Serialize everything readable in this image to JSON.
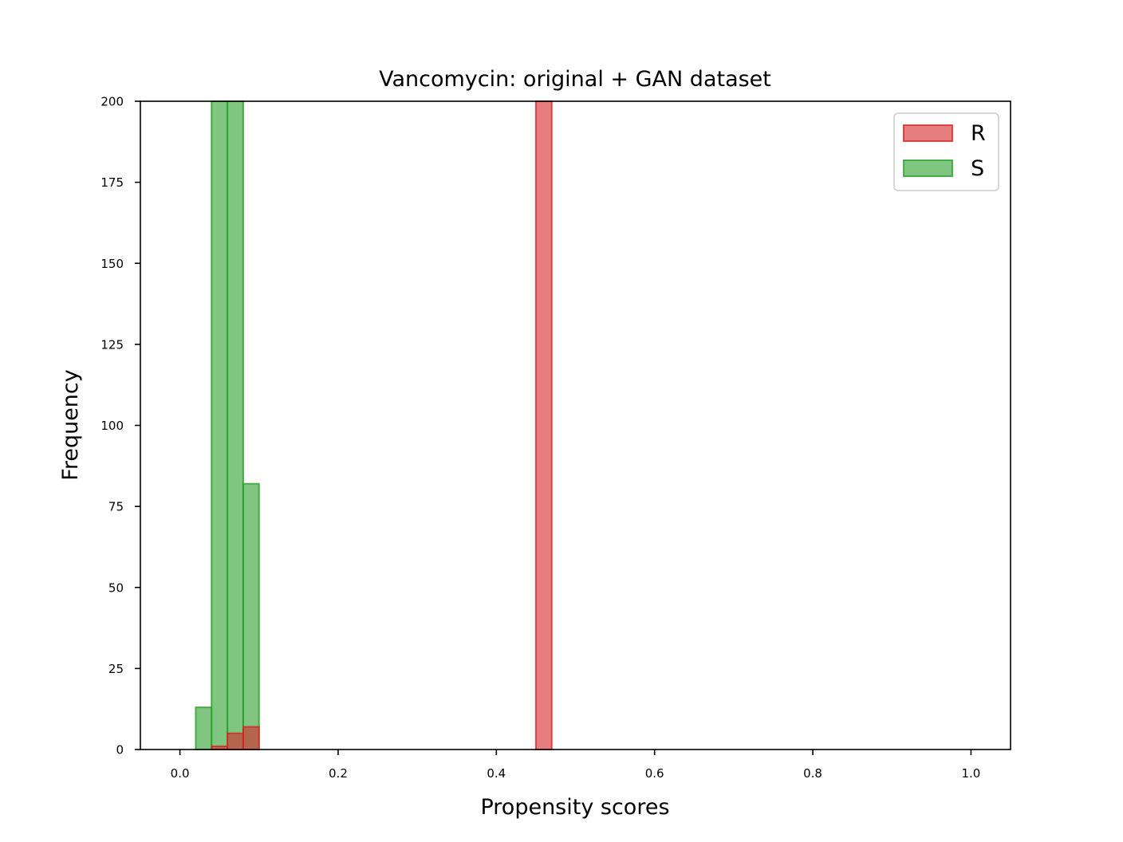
{
  "chart_data": {
    "type": "bar",
    "title": "Vancomycin: original + GAN dataset",
    "xlabel": "Propensity scores",
    "ylabel": "Frequency",
    "xlim": [
      -0.05,
      1.05
    ],
    "ylim": [
      0,
      200
    ],
    "xticks": [
      "0.0",
      "0.2",
      "0.4",
      "0.6",
      "0.8",
      "1.0"
    ],
    "yticks": [
      "0",
      "25",
      "50",
      "75",
      "100",
      "125",
      "150",
      "175",
      "200"
    ],
    "legend_position": "top-right",
    "grid": false,
    "series": [
      {
        "name": "S",
        "color": "#2ca02c",
        "bins": [
          {
            "x0": 0.02,
            "x1": 0.04,
            "value": 13
          },
          {
            "x0": 0.04,
            "x1": 0.06,
            "value": 200
          },
          {
            "x0": 0.06,
            "x1": 0.08,
            "value": 200
          },
          {
            "x0": 0.08,
            "x1": 0.1,
            "value": 82
          }
        ]
      },
      {
        "name": "R",
        "color": "#d62728",
        "bins": [
          {
            "x0": 0.04,
            "x1": 0.06,
            "value": 1
          },
          {
            "x0": 0.06,
            "x1": 0.08,
            "value": 5
          },
          {
            "x0": 0.08,
            "x1": 0.1,
            "value": 7
          },
          {
            "x0": 0.45,
            "x1": 0.47,
            "value": 200
          }
        ]
      }
    ],
    "legend_order": [
      "R",
      "S"
    ]
  }
}
